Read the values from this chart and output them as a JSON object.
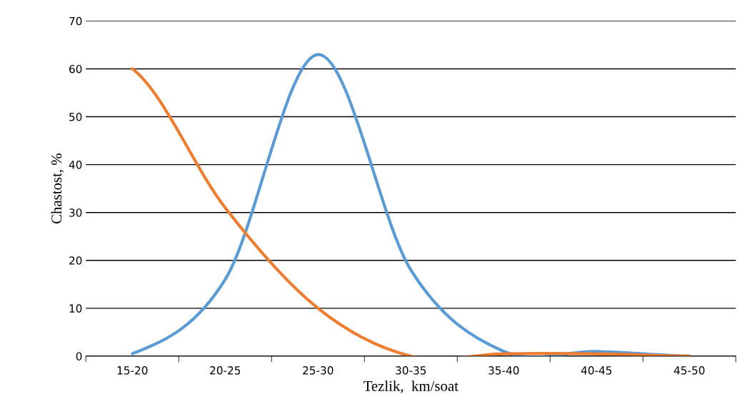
{
  "chart_data": {
    "type": "line",
    "xlabel": "Tezlik,  km/soat",
    "ylabel": "Chastost, %",
    "categories": [
      "15-20",
      "20-25",
      "25-30",
      "30-35",
      "35-40",
      "40-45",
      "45-50"
    ],
    "series": [
      {
        "color": "#5b9bd5",
        "values": [
          0.5,
          16,
          63,
          18,
          1,
          1,
          0
        ]
      },
      {
        "color": "#ed7d31",
        "values": [
          60,
          31,
          10,
          0,
          0.5,
          0.5,
          0
        ]
      }
    ],
    "ylim": [
      0,
      70
    ],
    "yticks": [
      0,
      10,
      20,
      30,
      40,
      50,
      60,
      70
    ],
    "grid": "y",
    "marker": "none",
    "line_style": "solid",
    "legend": false
  }
}
